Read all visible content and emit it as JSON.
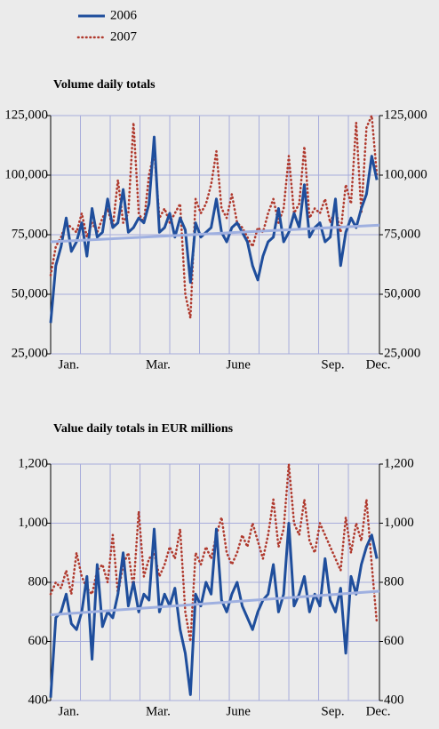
{
  "chart_data": [
    {
      "type": "line",
      "title": "Volume daily totals",
      "x": [
        0,
        4,
        8,
        12,
        16,
        20,
        24,
        28,
        32,
        36,
        40,
        44,
        48,
        52,
        56,
        60,
        64,
        68,
        72,
        76,
        80,
        84,
        88,
        92,
        96,
        100,
        104,
        108,
        112,
        116,
        120,
        124,
        128,
        132,
        136,
        140,
        144,
        148,
        152,
        156,
        160,
        164,
        168,
        172,
        176,
        180,
        184,
        188,
        192,
        196,
        200,
        204,
        208,
        212,
        216,
        220,
        224,
        228,
        232,
        236,
        240,
        244,
        248,
        252
      ],
      "xlim": [
        0,
        254
      ],
      "xticks": [
        {
          "value": 14,
          "label": "Jan."
        },
        {
          "value": 83,
          "label": "Mar."
        },
        {
          "value": 145,
          "label": "June"
        },
        {
          "value": 218,
          "label": "Sep."
        },
        {
          "value": 253,
          "label": "Dec."
        }
      ],
      "xgrid": [
        0,
        23,
        46,
        69,
        92,
        115,
        138,
        161,
        184,
        207,
        230,
        254
      ],
      "ylim": [
        25000,
        125000
      ],
      "yticks": [
        {
          "value": 25000,
          "label": "25,000"
        },
        {
          "value": 50000,
          "label": "50,000"
        },
        {
          "value": 75000,
          "label": "75,000"
        },
        {
          "value": 100000,
          "label": "100,000"
        },
        {
          "value": 125000,
          "label": "125,000"
        }
      ],
      "grid": true,
      "series": [
        {
          "name": "2006",
          "color": "#1f4e9c",
          "style": "solid",
          "values": [
            38000,
            62000,
            70000,
            82000,
            68000,
            72000,
            80000,
            66000,
            86000,
            74000,
            76000,
            90000,
            78000,
            80000,
            94000,
            76000,
            78000,
            82000,
            80000,
            88000,
            116000,
            76000,
            78000,
            84000,
            74000,
            82000,
            77000,
            55000,
            80000,
            74000,
            76000,
            78000,
            90000,
            76000,
            72000,
            78000,
            80000,
            76000,
            72000,
            62000,
            56000,
            66000,
            72000,
            74000,
            86000,
            72000,
            76000,
            84000,
            78000,
            96000,
            74000,
            78000,
            80000,
            72000,
            74000,
            90000,
            62000,
            76000,
            82000,
            78000,
            86000,
            92000,
            108000,
            98000
          ]
        },
        {
          "name": "2007",
          "color": "#b03a2e",
          "style": "dotted",
          "values": [
            58000,
            70000,
            74000,
            80000,
            78000,
            76000,
            84000,
            74000,
            80000,
            76000,
            82000,
            86000,
            78000,
            98000,
            80000,
            84000,
            122000,
            84000,
            80000,
            100000,
            110000,
            82000,
            86000,
            80000,
            84000,
            88000,
            50000,
            40000,
            90000,
            84000,
            88000,
            96000,
            110000,
            86000,
            82000,
            92000,
            80000,
            78000,
            74000,
            70000,
            78000,
            76000,
            84000,
            90000,
            80000,
            86000,
            108000,
            84000,
            88000,
            112000,
            82000,
            86000,
            84000,
            90000,
            80000,
            86000,
            76000,
            96000,
            88000,
            122000,
            84000,
            120000,
            125000,
            100000
          ]
        }
      ],
      "trend": {
        "color": "#9fb0e0",
        "x": [
          0,
          254
        ],
        "values": [
          72000,
          79000
        ]
      }
    },
    {
      "type": "line",
      "title": "Value daily totals in EUR millions",
      "x": [
        0,
        4,
        8,
        12,
        16,
        20,
        24,
        28,
        32,
        36,
        40,
        44,
        48,
        52,
        56,
        60,
        64,
        68,
        72,
        76,
        80,
        84,
        88,
        92,
        96,
        100,
        104,
        108,
        112,
        116,
        120,
        124,
        128,
        132,
        136,
        140,
        144,
        148,
        152,
        156,
        160,
        164,
        168,
        172,
        176,
        180,
        184,
        188,
        192,
        196,
        200,
        204,
        208,
        212,
        216,
        220,
        224,
        228,
        232,
        236,
        240,
        244,
        248,
        252
      ],
      "xlim": [
        0,
        254
      ],
      "xticks": [
        {
          "value": 14,
          "label": "Jan."
        },
        {
          "value": 83,
          "label": "Mar."
        },
        {
          "value": 145,
          "label": "June"
        },
        {
          "value": 218,
          "label": "Sep."
        },
        {
          "value": 253,
          "label": "Dec."
        }
      ],
      "xgrid": [
        0,
        23,
        46,
        69,
        92,
        115,
        138,
        161,
        184,
        207,
        230,
        254
      ],
      "ylim": [
        400,
        1200
      ],
      "yticks": [
        400,
        600,
        800,
        {
          "value": 1000,
          "label": "1,000"
        },
        {
          "value": 1200,
          "label": "1,200"
        }
      ],
      "grid": true,
      "series": [
        {
          "name": "2006",
          "color": "#1f4e9c",
          "style": "solid",
          "values": [
            410,
            680,
            700,
            760,
            660,
            640,
            700,
            820,
            540,
            860,
            650,
            700,
            680,
            760,
            900,
            720,
            800,
            700,
            760,
            740,
            980,
            700,
            760,
            720,
            780,
            640,
            560,
            420,
            760,
            720,
            800,
            760,
            980,
            740,
            700,
            760,
            800,
            720,
            680,
            640,
            700,
            740,
            760,
            860,
            700,
            760,
            1000,
            720,
            760,
            820,
            700,
            760,
            720,
            880,
            740,
            700,
            780,
            560,
            820,
            760,
            860,
            920,
            960,
            880
          ]
        },
        {
          "name": "2007",
          "color": "#b03a2e",
          "style": "dotted",
          "values": [
            760,
            800,
            780,
            840,
            760,
            900,
            820,
            780,
            760,
            840,
            860,
            800,
            960,
            760,
            860,
            900,
            780,
            1040,
            820,
            880,
            900,
            820,
            860,
            920,
            880,
            980,
            700,
            600,
            900,
            860,
            920,
            880,
            960,
            1020,
            900,
            860,
            900,
            960,
            920,
            1000,
            940,
            880,
            960,
            1080,
            920,
            980,
            1200,
            1000,
            960,
            1080,
            940,
            900,
            1000,
            960,
            920,
            880,
            840,
            1020,
            900,
            1000,
            940,
            1080,
            860,
            660
          ]
        }
      ],
      "trend": {
        "color": "#9fb0e0",
        "x": [
          0,
          254
        ],
        "values": [
          690,
          770
        ]
      }
    }
  ]
}
